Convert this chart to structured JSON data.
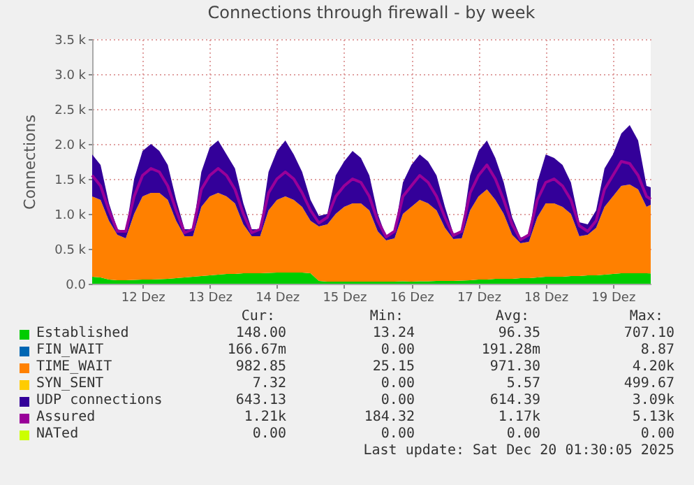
{
  "chart_data": {
    "type": "area",
    "stacked": true,
    "title": "Connections through firewall - by week",
    "ylabel": "Connections",
    "x": [
      "2025-12-11T18:00",
      "2025-12-11T21:00",
      "2025-12-12T00:00",
      "2025-12-12T03:00",
      "2025-12-12T06:00",
      "2025-12-12T09:00",
      "2025-12-12T12:00",
      "2025-12-12T15:00",
      "2025-12-12T18:00",
      "2025-12-12T21:00",
      "2025-12-13T00:00",
      "2025-12-13T03:00",
      "2025-12-13T06:00",
      "2025-12-13T09:00",
      "2025-12-13T12:00",
      "2025-12-13T15:00",
      "2025-12-13T18:00",
      "2025-12-13T21:00",
      "2025-12-14T00:00",
      "2025-12-14T03:00",
      "2025-12-14T06:00",
      "2025-12-14T09:00",
      "2025-12-14T12:00",
      "2025-12-14T15:00",
      "2025-12-14T18:00",
      "2025-12-14T21:00",
      "2025-12-15T00:00",
      "2025-12-15T03:00",
      "2025-12-15T06:00",
      "2025-12-15T09:00",
      "2025-12-15T12:00",
      "2025-12-15T15:00",
      "2025-12-15T18:00",
      "2025-12-15T21:00",
      "2025-12-16T00:00",
      "2025-12-16T03:00",
      "2025-12-16T06:00",
      "2025-12-16T09:00",
      "2025-12-16T12:00",
      "2025-12-16T15:00",
      "2025-12-16T18:00",
      "2025-12-16T21:00",
      "2025-12-17T00:00",
      "2025-12-17T03:00",
      "2025-12-17T06:00",
      "2025-12-17T09:00",
      "2025-12-17T12:00",
      "2025-12-17T15:00",
      "2025-12-17T18:00",
      "2025-12-17T21:00",
      "2025-12-18T00:00",
      "2025-12-18T03:00",
      "2025-12-18T06:00",
      "2025-12-18T09:00",
      "2025-12-18T12:00",
      "2025-12-18T15:00",
      "2025-12-18T18:00",
      "2025-12-18T21:00",
      "2025-12-19T00:00",
      "2025-12-19T03:00",
      "2025-12-19T06:00",
      "2025-12-19T09:00",
      "2025-12-19T12:00",
      "2025-12-19T15:00",
      "2025-12-19T18:00",
      "2025-12-19T21:00",
      "2025-12-20T00:00",
      "2025-12-20T01:30"
    ],
    "series": [
      {
        "name": "Established",
        "color": "#00cc00",
        "values": [
          100,
          90,
          60,
          50,
          50,
          55,
          60,
          60,
          65,
          70,
          80,
          90,
          100,
          110,
          120,
          130,
          140,
          140,
          150,
          150,
          150,
          155,
          160,
          160,
          160,
          160,
          150,
          40,
          30,
          30,
          30,
          30,
          30,
          30,
          30,
          30,
          30,
          35,
          30,
          35,
          35,
          40,
          40,
          40,
          45,
          50,
          60,
          60,
          70,
          70,
          70,
          80,
          80,
          90,
          100,
          100,
          100,
          110,
          110,
          120,
          120,
          130,
          140,
          150,
          150,
          150,
          150,
          148
        ]
      },
      {
        "name": "FIN_WAIT",
        "color": "#0066b3",
        "values": [
          null,
          null,
          null,
          null,
          null,
          null,
          null,
          null,
          null,
          null,
          null,
          null,
          null,
          null,
          null,
          null,
          null,
          null,
          null,
          null,
          null,
          null,
          null,
          null,
          null,
          null,
          null,
          null,
          null,
          null,
          null,
          null,
          null,
          null,
          null,
          null,
          null,
          null,
          null,
          null,
          null,
          null,
          null,
          null,
          null,
          null,
          null,
          null,
          null,
          null,
          null,
          null,
          null,
          null,
          null,
          null,
          null,
          null,
          null,
          null,
          null,
          null,
          null,
          null,
          null,
          null,
          null,
          null
        ]
      },
      {
        "name": "TIME_WAIT",
        "color": "#ff8000",
        "values": [
          1150,
          1110,
          840,
          650,
          600,
          945,
          1190,
          1240,
          1235,
          1130,
          820,
          590,
          580,
          990,
          1130,
          1170,
          1110,
          1010,
          700,
          530,
          530,
          895,
          1040,
          1090,
          1040,
          940,
          750,
          780,
          820,
          970,
          1070,
          1120,
          1120,
          1020,
          720,
          590,
          620,
          965,
          1070,
          1165,
          1115,
          1010,
          760,
          600,
          605,
          1000,
          1190,
          1290,
          1130,
          930,
          630,
          500,
          520,
          860,
          1050,
          1050,
          1000,
          890,
          570,
          580,
          680,
          970,
          1110,
          1250,
          1270,
          1200,
          950,
          982
        ]
      },
      {
        "name": "SYN_SENT",
        "color": "#ffcc00",
        "values": [
          null,
          null,
          null,
          null,
          null,
          null,
          null,
          null,
          null,
          null,
          null,
          null,
          null,
          null,
          null,
          null,
          null,
          null,
          null,
          null,
          null,
          null,
          null,
          null,
          null,
          null,
          null,
          null,
          null,
          null,
          null,
          null,
          null,
          null,
          null,
          null,
          null,
          null,
          null,
          null,
          null,
          null,
          null,
          null,
          null,
          null,
          null,
          null,
          null,
          null,
          null,
          null,
          null,
          null,
          null,
          null,
          null,
          null,
          null,
          null,
          null,
          null,
          null,
          null,
          null,
          null,
          null,
          null
        ]
      },
      {
        "name": "UDP connections",
        "color": "#330099",
        "values": [
          600,
          500,
          250,
          80,
          100,
          500,
          650,
          700,
          600,
          500,
          300,
          100,
          100,
          500,
          700,
          750,
          600,
          500,
          300,
          100,
          100,
          550,
          700,
          800,
          650,
          500,
          300,
          150,
          150,
          550,
          650,
          750,
          650,
          500,
          250,
          50,
          100,
          450,
          600,
          650,
          600,
          500,
          300,
          80,
          100,
          500,
          650,
          700,
          600,
          450,
          250,
          80,
          100,
          500,
          700,
          650,
          600,
          450,
          200,
          150,
          250,
          550,
          600,
          750,
          850,
          700,
          300,
          250
        ]
      },
      {
        "name": "Assured",
        "type": "line",
        "color": "#990099",
        "values": [
          1550,
          1400,
          1050,
          750,
          750,
          1250,
          1550,
          1650,
          1600,
          1400,
          1050,
          730,
          780,
          1350,
          1550,
          1650,
          1550,
          1350,
          1000,
          730,
          780,
          1300,
          1500,
          1600,
          1500,
          1300,
          1050,
          870,
          950,
          1250,
          1400,
          1500,
          1450,
          1250,
          900,
          670,
          750,
          1250,
          1400,
          1550,
          1450,
          1250,
          950,
          690,
          750,
          1300,
          1550,
          1700,
          1500,
          1200,
          850,
          630,
          700,
          1200,
          1450,
          1500,
          1400,
          1200,
          830,
          750,
          900,
          1350,
          1550,
          1750,
          1720,
          1550,
          1250,
          1210
        ]
      },
      {
        "name": "NATed",
        "color": "#ccff00",
        "values": [
          null,
          null,
          null,
          null,
          null,
          null,
          null,
          null,
          null,
          null,
          null,
          null,
          null,
          null,
          null,
          null,
          null,
          null,
          null,
          null,
          null,
          null,
          null,
          null,
          null,
          null,
          null,
          null,
          null,
          null,
          null,
          null,
          null,
          null,
          null,
          null,
          null,
          null,
          null,
          null,
          null,
          null,
          null,
          null,
          null,
          null,
          null,
          null,
          null,
          null,
          null,
          null,
          null,
          null,
          null,
          null,
          null,
          null,
          null,
          null,
          null,
          null,
          null,
          null,
          null,
          null,
          null,
          null
        ]
      }
    ],
    "xlim": [
      "2025-12-11T18:00",
      "2025-12-20T01:30"
    ],
    "xticks": [
      {
        "value": "2025-12-12T12:00",
        "label": "12 Dez"
      },
      {
        "value": "2025-12-13T12:00",
        "label": "13 Dez"
      },
      {
        "value": "2025-12-14T12:00",
        "label": "14 Dez"
      },
      {
        "value": "2025-12-15T12:00",
        "label": "15 Dez"
      },
      {
        "value": "2025-12-16T12:00",
        "label": "16 Dez"
      },
      {
        "value": "2025-12-17T12:00",
        "label": "17 Dez"
      },
      {
        "value": "2025-12-18T12:00",
        "label": "18 Dez"
      },
      {
        "value": "2025-12-19T12:00",
        "label": "19 Dez"
      }
    ],
    "ylim": [
      0,
      3500
    ],
    "yticks": [
      {
        "value": 0,
        "label": "0.0"
      },
      {
        "value": 500,
        "label": "0.5 k"
      },
      {
        "value": 1000,
        "label": "1.0 k"
      },
      {
        "value": 1500,
        "label": "1.5 k"
      },
      {
        "value": 2000,
        "label": "2.0 k"
      },
      {
        "value": 2500,
        "label": "2.5 k"
      },
      {
        "value": 3000,
        "label": "3.0 k"
      },
      {
        "value": 3500,
        "label": "3.5 k"
      }
    ],
    "grid": true,
    "legend": "bottom",
    "annotations": [
      "Cur:",
      "Min:",
      "Avg:",
      "Max:",
      "148.00",
      "13.24",
      "96.35",
      "707.10",
      "166.67m",
      "0.00",
      "191.28m",
      "8.87",
      "982.85",
      "25.15",
      "971.30",
      "4.20k",
      "7.32",
      "0.00",
      "5.57",
      "499.67",
      "643.13",
      "0.00",
      "614.39",
      "3.09k",
      "1.21k",
      "184.32",
      "1.17k",
      "5.13k",
      "0.00",
      "0.00",
      "0.00",
      "0.00",
      "Last update: Sat Dec 20 01:30:05 2025"
    ]
  }
}
